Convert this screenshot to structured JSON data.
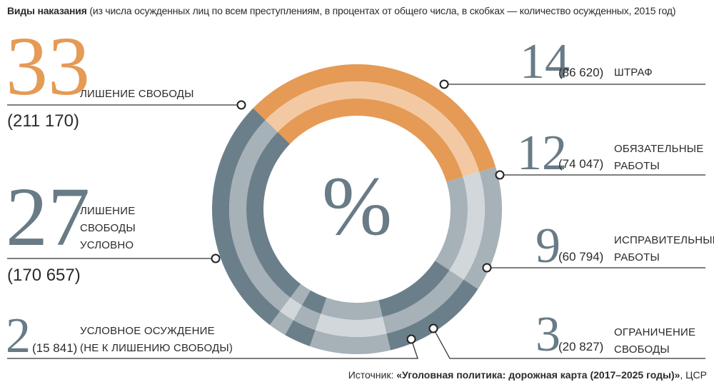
{
  "header": {
    "title_bold": "Виды наказания",
    "title_rest": "(из числа осужденных лиц по всем преступлениям, в процентах от общего числа, в скобках — количество осужденных, 2015 год)"
  },
  "center_symbol": "%",
  "source": {
    "prefix": "Источник: ",
    "bold": "«Уголовная политика: дорожная карта (2017–2025 годы)»",
    "suffix": ", ЦСР"
  },
  "colors": {
    "orange": "#e59a55",
    "orange_light": "#f3c9a4",
    "slate": "#6b7f8a",
    "grey": "#a7b1b8",
    "grey_light": "#d2d7db"
  },
  "chart_data": {
    "type": "pie",
    "title": "Виды наказания",
    "unit": "%",
    "categories": [
      "ЛИШЕНИЕ СВОБОДЫ",
      "ЛИШЕНИЕ СВОБОДЫ УСЛОВНО",
      "УСЛОВНОЕ ОСУЖДЕНИЕ (НЕ К ЛИШЕНИЮ СВОБОДЫ)",
      "ОГРАНИЧЕНИЕ СВОБОДЫ",
      "ИСПРАВИТЕЛЬНЫЕ РАБОТЫ",
      "ОБЯЗАТЕЛЬНЫЕ РАБОТЫ",
      "ШТРАФ"
    ],
    "values": [
      33,
      27,
      2,
      3,
      9,
      12,
      14
    ],
    "counts": [
      "211 170",
      "170 657",
      "15 841",
      "20 827",
      "60 794",
      "74 047",
      "86 620"
    ]
  },
  "labels": {
    "deprivation": {
      "pct": "33",
      "name": "ЛИШЕНИЕ СВОБОДЫ",
      "count": "(211 170)"
    },
    "suspended": {
      "pct": "27",
      "lines": [
        "ЛИШЕНИЕ",
        "СВОБОДЫ",
        "УСЛОВНО"
      ],
      "count": "(170 657)"
    },
    "conditional": {
      "pct": "2",
      "count": "(15 841)",
      "lines": [
        "УСЛОВНОЕ ОСУЖДЕНИЕ",
        "(НЕ К ЛИШЕНИЮ СВОБОДЫ)"
      ]
    },
    "fine": {
      "pct": "14",
      "count": "(86 620)",
      "name": "ШТРАФ"
    },
    "compulsory": {
      "pct": "12",
      "count": "(74 047)",
      "lines": [
        "ОБЯЗАТЕЛЬНЫЕ",
        "РАБОТЫ"
      ]
    },
    "correctional": {
      "pct": "9",
      "count": "(60 794)",
      "lines": [
        "ИСПРАВИТЕЛЬНЫЕ",
        "РАБОТЫ"
      ]
    },
    "restriction": {
      "pct": "3",
      "count": "(20 827)",
      "lines": [
        "ОГРАНИЧЕНИЕ",
        "СВОБОДЫ"
      ]
    }
  }
}
